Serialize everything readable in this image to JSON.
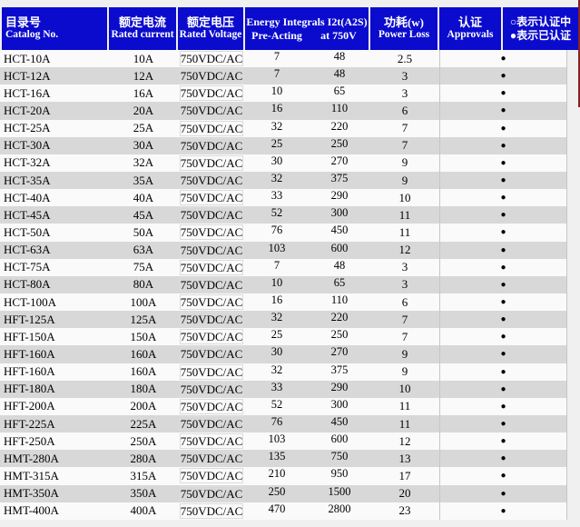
{
  "colors": {
    "header_bg": "#0b0bcd",
    "header_text": "#ffffff",
    "row_light": "#fafafa",
    "row_dark": "#d8d8d8",
    "page_bg": "#f0f0f0",
    "edge_strip": "#8b2222",
    "approval_dot_color": "#000000"
  },
  "table": {
    "headers": {
      "catalog_zh": "目录号",
      "catalog_en": "Catalog No.",
      "current_zh": "额定电流",
      "current_en": "Rated current",
      "voltage_zh": "额定电压",
      "voltage_en": "Rated Voltage",
      "energy_title": "Energy Integrals I2t(A2S)",
      "energy_sub_pre": "Pre-Acting",
      "energy_sub_750": "at 750V",
      "power_zh": "功耗(w)",
      "power_en": "Power Loss",
      "approvals_zh": "认证",
      "approvals_en": "Approvals",
      "legend_line1": "○表示认证中",
      "legend_line2": "●表示已认证"
    },
    "rows": [
      {
        "catalog": "HCT-10A",
        "current": "10A",
        "voltage": "750VDC/AC",
        "pre_acting": "7",
        "at_750v": "48",
        "power_loss": "2.5",
        "approval": "●"
      },
      {
        "catalog": "HCT-12A",
        "current": "12A",
        "voltage": "750VDC/AC",
        "pre_acting": "7",
        "at_750v": "48",
        "power_loss": "3",
        "approval": "●"
      },
      {
        "catalog": "HCT-16A",
        "current": "16A",
        "voltage": "750VDC/AC",
        "pre_acting": "10",
        "at_750v": "65",
        "power_loss": "3",
        "approval": "●"
      },
      {
        "catalog": "HCT-20A",
        "current": "20A",
        "voltage": "750VDC/AC",
        "pre_acting": "16",
        "at_750v": "110",
        "power_loss": "6",
        "approval": "●"
      },
      {
        "catalog": "HCT-25A",
        "current": "25A",
        "voltage": "750VDC/AC",
        "pre_acting": "32",
        "at_750v": "220",
        "power_loss": "7",
        "approval": "●"
      },
      {
        "catalog": "HCT-30A",
        "current": "30A",
        "voltage": "750VDC/AC",
        "pre_acting": "25",
        "at_750v": "250",
        "power_loss": "7",
        "approval": "●"
      },
      {
        "catalog": "HCT-32A",
        "current": "32A",
        "voltage": "750VDC/AC",
        "pre_acting": "30",
        "at_750v": "270",
        "power_loss": "9",
        "approval": "●"
      },
      {
        "catalog": "HCT-35A",
        "current": "35A",
        "voltage": "750VDC/AC",
        "pre_acting": "32",
        "at_750v": "375",
        "power_loss": "9",
        "approval": "●"
      },
      {
        "catalog": "HCT-40A",
        "current": "40A",
        "voltage": "750VDC/AC",
        "pre_acting": "33",
        "at_750v": "290",
        "power_loss": "10",
        "approval": "●"
      },
      {
        "catalog": "HCT-45A",
        "current": "45A",
        "voltage": "750VDC/AC",
        "pre_acting": "52",
        "at_750v": "300",
        "power_loss": "11",
        "approval": "●"
      },
      {
        "catalog": "HCT-50A",
        "current": "50A",
        "voltage": "750VDC/AC",
        "pre_acting": "76",
        "at_750v": "450",
        "power_loss": "11",
        "approval": "●"
      },
      {
        "catalog": "HCT-63A",
        "current": "63A",
        "voltage": "750VDC/AC",
        "pre_acting": "103",
        "at_750v": "600",
        "power_loss": "12",
        "approval": "●"
      },
      {
        "catalog": "HCT-75A",
        "current": "75A",
        "voltage": "750VDC/AC",
        "pre_acting": "7",
        "at_750v": "48",
        "power_loss": "3",
        "approval": "●"
      },
      {
        "catalog": "HCT-80A",
        "current": "80A",
        "voltage": "750VDC/AC",
        "pre_acting": "10",
        "at_750v": "65",
        "power_loss": "3",
        "approval": "●"
      },
      {
        "catalog": "HCT-100A",
        "current": "100A",
        "voltage": "750VDC/AC",
        "pre_acting": "16",
        "at_750v": "110",
        "power_loss": "6",
        "approval": "●"
      },
      {
        "catalog": "HFT-125A",
        "current": "125A",
        "voltage": "750VDC/AC",
        "pre_acting": "32",
        "at_750v": "220",
        "power_loss": "7",
        "approval": "●"
      },
      {
        "catalog": "HFT-150A",
        "current": "150A",
        "voltage": "750VDC/AC",
        "pre_acting": "25",
        "at_750v": "250",
        "power_loss": "7",
        "approval": "●"
      },
      {
        "catalog": "HFT-160A",
        "current": "160A",
        "voltage": "750VDC/AC",
        "pre_acting": "30",
        "at_750v": "270",
        "power_loss": "9",
        "approval": "●"
      },
      {
        "catalog": "HFT-160A",
        "current": "160A",
        "voltage": "750VDC/AC",
        "pre_acting": "32",
        "at_750v": "375",
        "power_loss": "9",
        "approval": "●"
      },
      {
        "catalog": "HFT-180A",
        "current": "180A",
        "voltage": "750VDC/AC",
        "pre_acting": "33",
        "at_750v": "290",
        "power_loss": "10",
        "approval": "●"
      },
      {
        "catalog": "HFT-200A",
        "current": "200A",
        "voltage": "750VDC/AC",
        "pre_acting": "52",
        "at_750v": "300",
        "power_loss": "11",
        "approval": "●"
      },
      {
        "catalog": "HFT-225A",
        "current": "225A",
        "voltage": "750VDC/AC",
        "pre_acting": "76",
        "at_750v": "450",
        "power_loss": "11",
        "approval": "●"
      },
      {
        "catalog": "HFT-250A",
        "current": "250A",
        "voltage": "750VDC/AC",
        "pre_acting": "103",
        "at_750v": "600",
        "power_loss": "12",
        "approval": "●"
      },
      {
        "catalog": "HMT-280A",
        "current": "280A",
        "voltage": "750VDC/AC",
        "pre_acting": "135",
        "at_750v": "750",
        "power_loss": "13",
        "approval": "●"
      },
      {
        "catalog": "HMT-315A",
        "current": "315A",
        "voltage": "750VDC/AC",
        "pre_acting": "210",
        "at_750v": "950",
        "power_loss": "17",
        "approval": "●"
      },
      {
        "catalog": "HMT-350A",
        "current": "350A",
        "voltage": "750VDC/AC",
        "pre_acting": "250",
        "at_750v": "1500",
        "power_loss": "20",
        "approval": "●"
      },
      {
        "catalog": "HMT-400A",
        "current": "400A",
        "voltage": "750VDC/AC",
        "pre_acting": "470",
        "at_750v": "2800",
        "power_loss": "23",
        "approval": "●"
      }
    ]
  }
}
